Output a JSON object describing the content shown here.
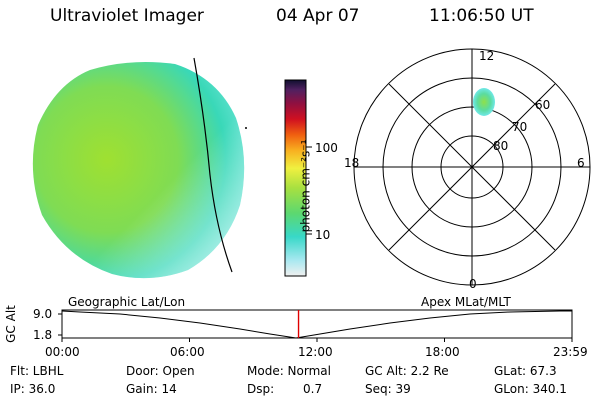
{
  "header": {
    "instrument": "Ultraviolet Imager",
    "date": "04 Apr 07",
    "time": "11:06:50 UT"
  },
  "colorbar": {
    "unit_label": "photon cm⁻²s⁻¹",
    "ticks": [
      "100",
      "10"
    ]
  },
  "polar_plot": {
    "mlt_labels": [
      "12",
      "18",
      "6",
      "0"
    ],
    "lat_labels": [
      "60",
      "70",
      "80"
    ]
  },
  "timeline": {
    "left_label": "Geographic Lat/Lon",
    "right_label": "Apex MLat/MLT",
    "yaxis_label": "GC Alt",
    "y_ticks": [
      "9.0",
      "1.8"
    ],
    "x_ticks": [
      "00:00",
      "06:00",
      "12:00",
      "18:00",
      "23:59"
    ],
    "current_time_fraction": 0.4638
  },
  "meta": {
    "filter": "Flt: LBHL",
    "ip": "IP: 36.0",
    "door": "Door: Open",
    "gain": "Gain: 14",
    "mode": "Mode: Normal",
    "dsp_label": "Dsp:",
    "dsp_value": "0.7",
    "gc_alt": "GC Alt: 2.2 Re",
    "seq": "Seq: 39",
    "glat": "GLat:  67.3",
    "glon": "GLon: 340.1"
  }
}
